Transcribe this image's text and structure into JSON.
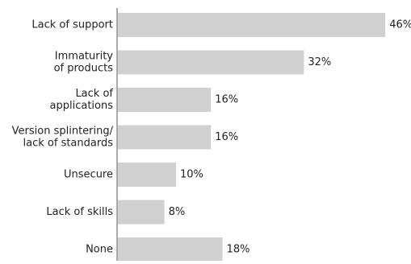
{
  "chart_data": {
    "type": "bar",
    "orientation": "horizontal",
    "categories": [
      [
        "Lack of support"
      ],
      [
        "Immaturity",
        "of products"
      ],
      [
        "Lack of",
        "applications"
      ],
      [
        "Version splintering/",
        "lack of standards"
      ],
      [
        "Unsecure"
      ],
      [
        "Lack of skills"
      ],
      [
        "None"
      ]
    ],
    "values": [
      46,
      32,
      16,
      16,
      10,
      8,
      18
    ],
    "value_labels": [
      "46%",
      "32%",
      "16%",
      "16%",
      "10%",
      "8%",
      "18%"
    ],
    "title": "",
    "xlabel": "",
    "ylabel": "",
    "xlim": [
      0,
      50
    ],
    "grid": false,
    "legend": "none",
    "colors": {
      "bar": "#d0d0d0",
      "axis": "#555555",
      "text": "#222222"
    }
  }
}
